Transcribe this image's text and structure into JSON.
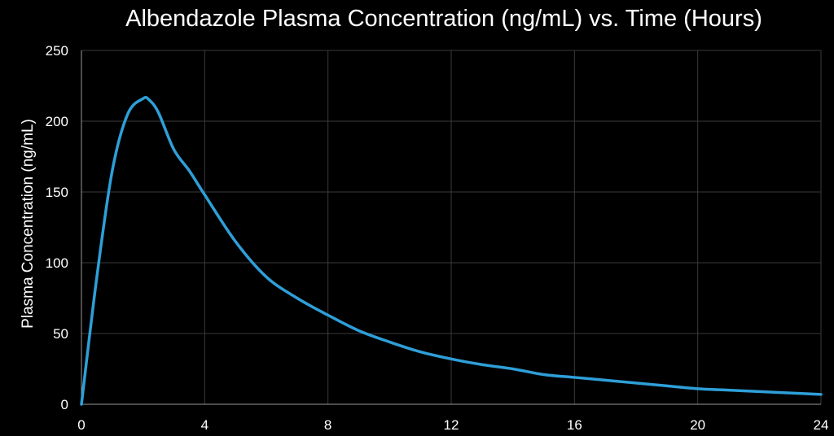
{
  "chart_data": {
    "type": "line",
    "title": "Albendazole Plasma Concentration (ng/mL) vs. Time (Hours)",
    "xlabel": "",
    "ylabel": "Plasma Concentration (ng/mL)",
    "xlim": [
      0,
      24
    ],
    "ylim": [
      0,
      250
    ],
    "x_ticks": [
      0,
      4,
      8,
      12,
      16,
      20,
      24
    ],
    "y_ticks": [
      0,
      50,
      100,
      150,
      200,
      250
    ],
    "grid": true,
    "legend": "none",
    "series": [
      {
        "color": "#2e9fd8",
        "x": [
          0,
          0.5,
          1,
          1.5,
          2,
          2.2,
          2.5,
          3,
          3.5,
          4,
          5,
          6,
          7,
          8,
          9,
          10,
          11,
          12,
          13,
          14,
          15,
          16,
          17,
          18,
          19,
          20,
          21,
          22,
          23,
          24
        ],
        "y": [
          0,
          90,
          165,
          205,
          216,
          215,
          206,
          180,
          165,
          148,
          115,
          90,
          75,
          63,
          52,
          44,
          37,
          32,
          28,
          25,
          21,
          19,
          17,
          15,
          13,
          11,
          10,
          9,
          8,
          7
        ]
      }
    ]
  }
}
